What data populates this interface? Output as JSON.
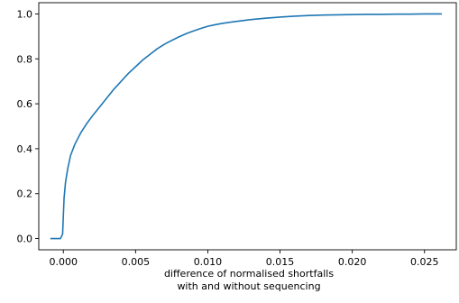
{
  "chart_data": {
    "type": "line",
    "title": "",
    "xlabel": [
      "difference of normalised shortfalls",
      "with and without sequencing"
    ],
    "ylabel": "",
    "xlim": [
      -0.0017,
      0.0272
    ],
    "ylim": [
      -0.05,
      1.05
    ],
    "xticks": [
      0.0,
      0.005,
      0.01,
      0.015,
      0.02,
      0.025
    ],
    "xtick_labels": [
      "0.000",
      "0.005",
      "0.010",
      "0.015",
      "0.020",
      "0.025"
    ],
    "yticks": [
      0.0,
      0.2,
      0.4,
      0.6,
      0.8,
      1.0
    ],
    "ytick_labels": [
      "0.0",
      "0.2",
      "0.4",
      "0.6",
      "0.8",
      "1.0"
    ],
    "grid": false,
    "legend": "none",
    "line_color": "#1f77b4",
    "series": [
      {
        "x": [
          -0.0009,
          -0.0002,
          -5e-05,
          0.0,
          5e-05,
          0.00015,
          0.0003,
          0.0005,
          0.0008,
          0.0012,
          0.0016,
          0.002,
          0.0025,
          0.003,
          0.0035,
          0.004,
          0.0045,
          0.005,
          0.0055,
          0.006,
          0.0065,
          0.007,
          0.0075,
          0.008,
          0.0085,
          0.009,
          0.0095,
          0.01,
          0.0105,
          0.011,
          0.012,
          0.013,
          0.014,
          0.015,
          0.016,
          0.017,
          0.018,
          0.019,
          0.02,
          0.021,
          0.022,
          0.023,
          0.024,
          0.025,
          0.0262
        ],
        "y": [
          0.0,
          0.0,
          0.02,
          0.1,
          0.18,
          0.25,
          0.31,
          0.37,
          0.42,
          0.47,
          0.51,
          0.545,
          0.585,
          0.625,
          0.665,
          0.7,
          0.735,
          0.765,
          0.795,
          0.82,
          0.845,
          0.865,
          0.882,
          0.898,
          0.912,
          0.924,
          0.935,
          0.945,
          0.952,
          0.958,
          0.967,
          0.975,
          0.981,
          0.986,
          0.99,
          0.993,
          0.995,
          0.996,
          0.997,
          0.998,
          0.998,
          0.999,
          0.999,
          1.0,
          1.0
        ]
      }
    ]
  }
}
